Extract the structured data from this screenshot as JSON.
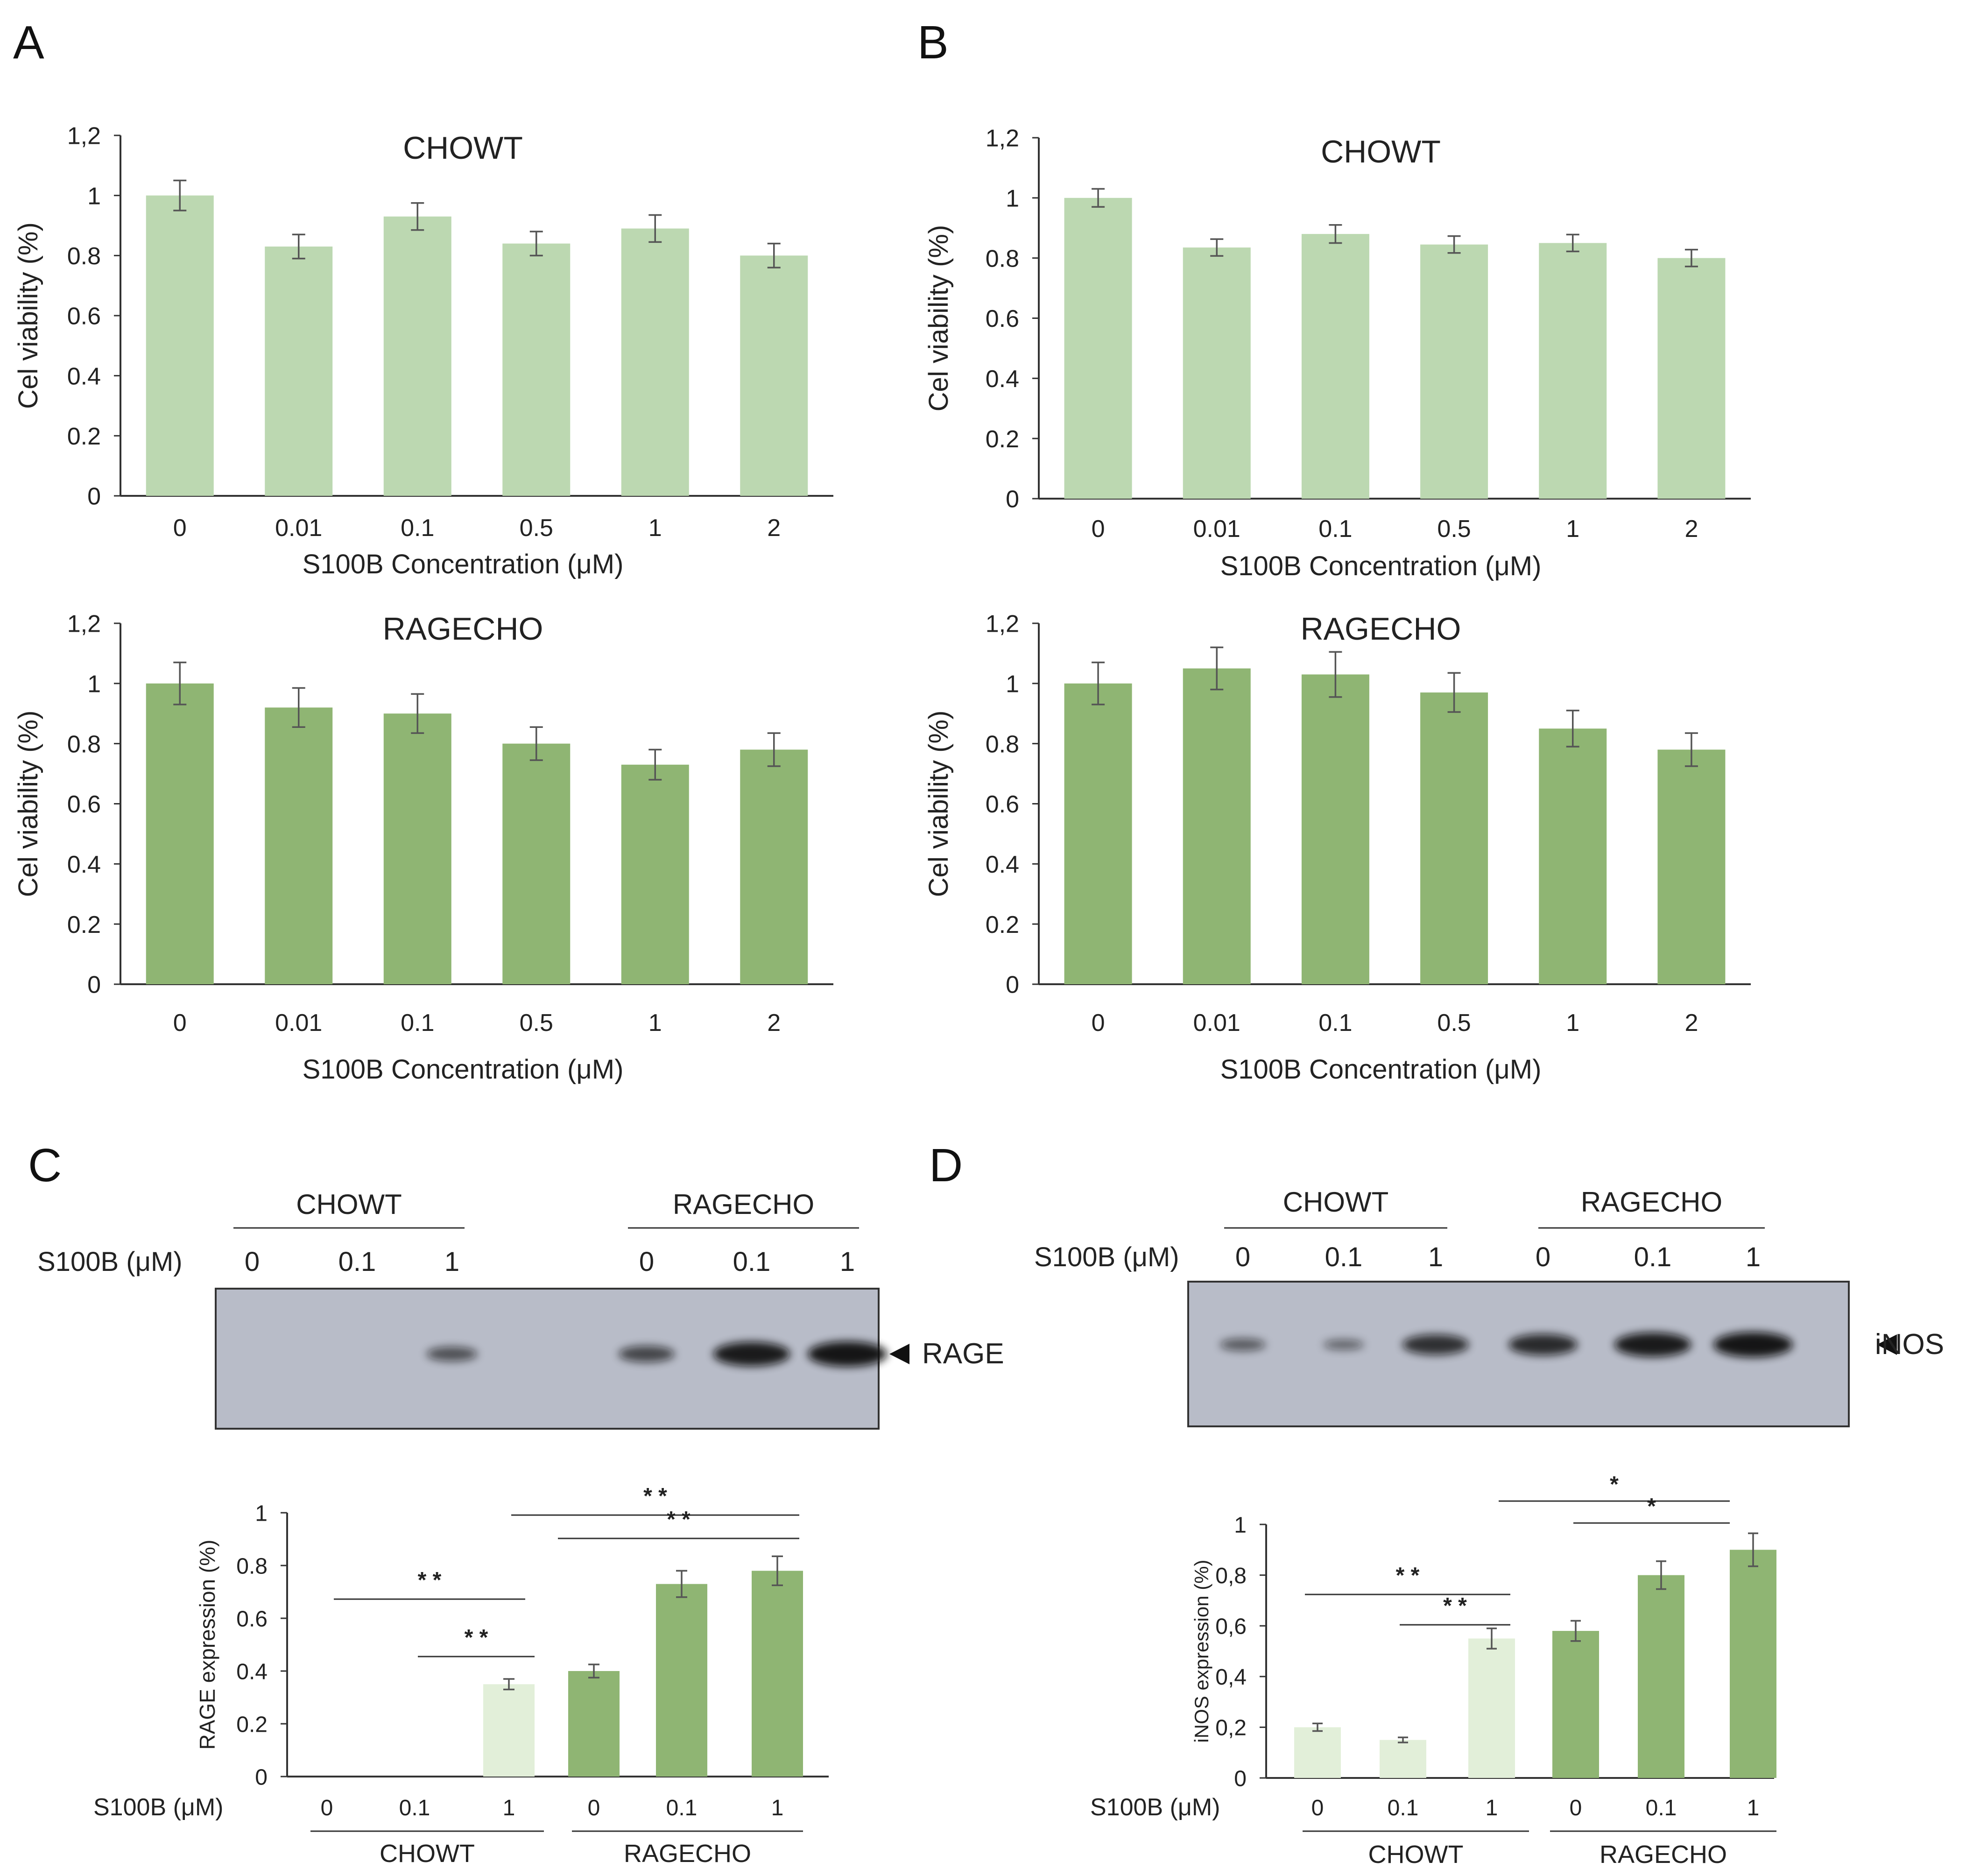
{
  "panels": {
    "A": "A",
    "B": "B",
    "C": "C",
    "D": "D"
  },
  "chart_data": [
    {
      "id": "A-top",
      "type": "bar",
      "title": "CHOWT",
      "xlabel": "S100B Concentration (μM)",
      "ylabel": "Cel viability (%)",
      "categories": [
        "0",
        "0.01",
        "0.1",
        "0.5",
        "1",
        "2"
      ],
      "values": [
        1.0,
        0.83,
        0.93,
        0.84,
        0.89,
        0.8
      ],
      "errors": [
        0.05,
        0.04,
        0.045,
        0.04,
        0.045,
        0.04
      ],
      "ylim": [
        0,
        1.2
      ],
      "yticks": [
        "0",
        "0.2",
        "0.4",
        "0.6",
        "0.8",
        "1",
        "1,2"
      ],
      "color": "#bcd8b1"
    },
    {
      "id": "A-bottom",
      "type": "bar",
      "title": "RAGECHO",
      "xlabel": "S100B Concentration (μM)",
      "ylabel": "Cel viability (%)",
      "categories": [
        "0",
        "0.01",
        "0.1",
        "0.5",
        "1",
        "2"
      ],
      "values": [
        1.0,
        0.92,
        0.9,
        0.8,
        0.73,
        0.78
      ],
      "errors": [
        0.07,
        0.065,
        0.065,
        0.055,
        0.05,
        0.055
      ],
      "ylim": [
        0,
        1.2
      ],
      "yticks": [
        "0",
        "0.2",
        "0.4",
        "0.6",
        "0.8",
        "1",
        "1,2"
      ],
      "color": "#8fb573"
    },
    {
      "id": "B-top",
      "type": "bar",
      "title": "CHOWT",
      "xlabel": "S100B Concentration (μM)",
      "ylabel": "Cel viability (%)",
      "categories": [
        "0",
        "0.01",
        "0.1",
        "0.5",
        "1",
        "2"
      ],
      "values": [
        1.0,
        0.835,
        0.88,
        0.845,
        0.85,
        0.8
      ],
      "errors": [
        0.03,
        0.028,
        0.03,
        0.028,
        0.028,
        0.028
      ],
      "ylim": [
        0,
        1.2
      ],
      "yticks": [
        "0",
        "0.2",
        "0.4",
        "0.6",
        "0.8",
        "1",
        "1,2"
      ],
      "color": "#bcd8b1"
    },
    {
      "id": "B-bottom",
      "type": "bar",
      "title": "RAGECHO",
      "xlabel": "S100B Concentration (μM)",
      "ylabel": "Cel viability (%)",
      "categories": [
        "0",
        "0.01",
        "0.1",
        "0.5",
        "1",
        "2"
      ],
      "values": [
        1.0,
        1.05,
        1.03,
        0.97,
        0.85,
        0.78
      ],
      "errors": [
        0.07,
        0.07,
        0.075,
        0.065,
        0.06,
        0.055
      ],
      "ylim": [
        0,
        1.2
      ],
      "yticks": [
        "0",
        "0.2",
        "0.4",
        "0.6",
        "0.8",
        "1",
        "1,2"
      ],
      "color": "#8fb573"
    },
    {
      "id": "C-chart",
      "type": "bar",
      "title": "",
      "xlabel": "",
      "ylabel": "RAGE expression (%)",
      "row_label": "S100B (μM)",
      "categories": [
        "0",
        "0.1",
        "1",
        "0",
        "0.1",
        "1"
      ],
      "groups": [
        "CHOWT",
        "RAGECHO"
      ],
      "values": [
        0,
        0,
        0.35,
        0.4,
        0.73,
        0.78
      ],
      "errors": [
        0,
        0,
        0.02,
        0.025,
        0.05,
        0.055
      ],
      "ylim": [
        0,
        1
      ],
      "yticks": [
        "0",
        "0.2",
        "0.4",
        "0.6",
        "0.8",
        "1"
      ],
      "colors": [
        "#e2efd9",
        "#e2efd9",
        "#e2efd9",
        "#8fb573",
        "#8fb573",
        "#8fb573"
      ],
      "significance": [
        {
          "from": 3,
          "to": 6,
          "label": "* *"
        },
        {
          "from": 4,
          "to": 6,
          "label": "* *"
        },
        {
          "from": 1,
          "to": 3,
          "label": "* *"
        },
        {
          "from": 2,
          "to": 3,
          "label": "* *"
        }
      ]
    },
    {
      "id": "D-chart",
      "type": "bar",
      "title": "",
      "xlabel": "",
      "ylabel": "iNOS expression (%)",
      "row_label": "S100B (μM)",
      "categories": [
        "0",
        "0.1",
        "1",
        "0",
        "0.1",
        "1"
      ],
      "groups": [
        "CHOWT",
        "RAGECHO"
      ],
      "values": [
        0.2,
        0.15,
        0.55,
        0.58,
        0.8,
        0.9
      ],
      "errors": [
        0.015,
        0.01,
        0.04,
        0.04,
        0.055,
        0.065
      ],
      "ylim": [
        0,
        1
      ],
      "yticks": [
        "0",
        "0,2",
        "0,4",
        "0,6",
        "0,8",
        "1"
      ],
      "colors": [
        "#e2efd9",
        "#e2efd9",
        "#e2efd9",
        "#8fb573",
        "#8fb573",
        "#8fb573"
      ],
      "significance": [
        {
          "from": 3,
          "to": 6,
          "label": "*"
        },
        {
          "from": 4,
          "to": 6,
          "label": "*"
        },
        {
          "from": 1,
          "to": 3,
          "label": "* *"
        },
        {
          "from": 2,
          "to": 3,
          "label": "* *"
        }
      ]
    }
  ],
  "blots": {
    "C": {
      "groups": [
        "CHOWT",
        "RAGECHO"
      ],
      "row_label": "S100B (μM)",
      "lanes": [
        "0",
        "0.1",
        "1",
        "0",
        "0.1",
        "1"
      ],
      "band_label": "RAGE",
      "intensities": [
        0,
        0,
        0.45,
        0.55,
        0.95,
        1.0
      ]
    },
    "D": {
      "groups": [
        "CHOWT",
        "RAGECHO"
      ],
      "row_label": "S100B (μM)",
      "lanes": [
        "0",
        "0.1",
        "1",
        "0",
        "0.1",
        "1"
      ],
      "band_label": "iNOS",
      "intensities": [
        0.35,
        0.25,
        0.75,
        0.8,
        0.95,
        1.0
      ]
    }
  }
}
